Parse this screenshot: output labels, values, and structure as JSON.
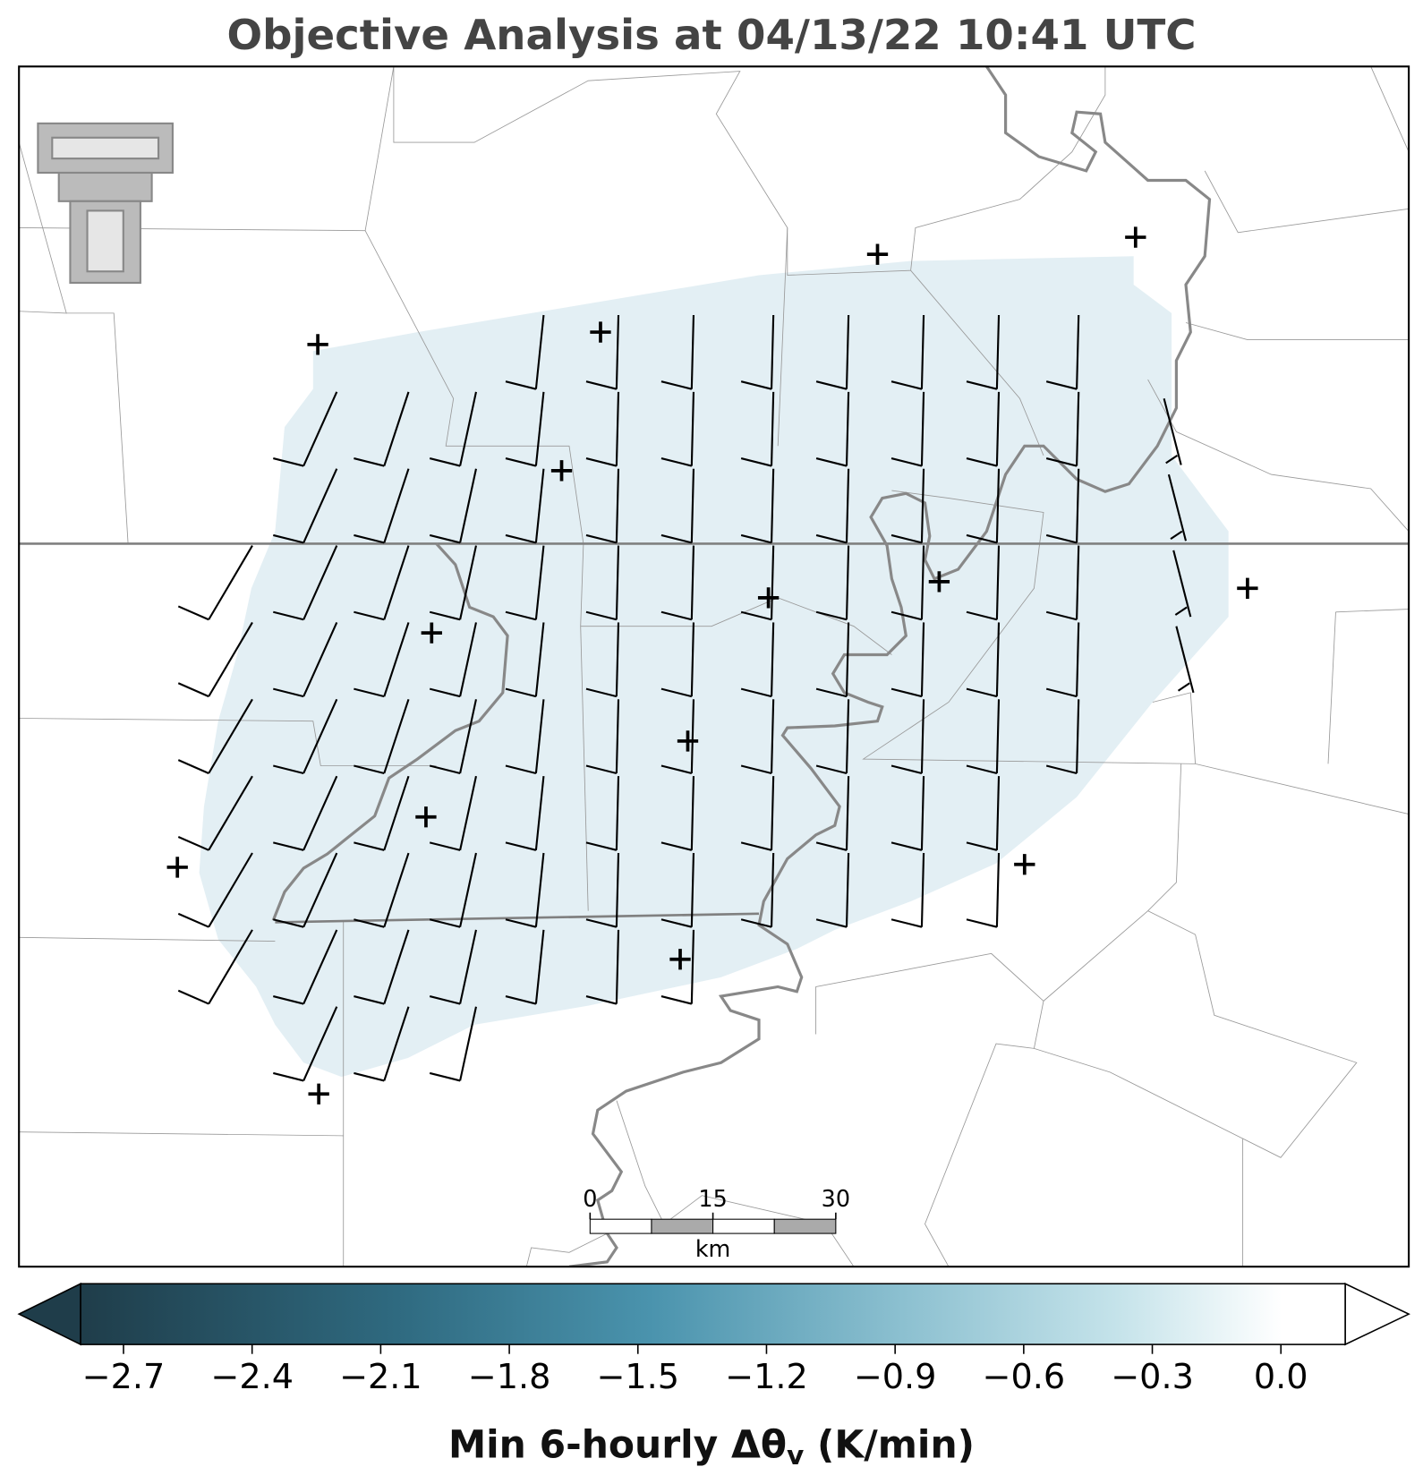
{
  "title": "Objective Analysis at 04/13/22 10:41 UTC",
  "colorbar": {
    "lim": [
      -2.8,
      0.15
    ],
    "ticks": [
      {
        "value": -2.7,
        "label": "−2.7"
      },
      {
        "value": -2.4,
        "label": "−2.4"
      },
      {
        "value": -2.1,
        "label": "−2.1"
      },
      {
        "value": -1.8,
        "label": "−1.8"
      },
      {
        "value": -1.5,
        "label": "−1.5"
      },
      {
        "value": -1.2,
        "label": "−1.2"
      },
      {
        "value": -0.9,
        "label": "−0.9"
      },
      {
        "value": -0.6,
        "label": "−0.6"
      },
      {
        "value": -0.3,
        "label": "−0.3"
      },
      {
        "value": 0.0,
        "label": "0.0"
      }
    ],
    "label": {
      "text": "Min 6-hourly Δθ",
      "subscript": "v",
      "suffix": " (K/min)"
    }
  },
  "scale_bar": {
    "ticks": [
      0,
      15,
      30
    ],
    "unit": "km"
  }
}
